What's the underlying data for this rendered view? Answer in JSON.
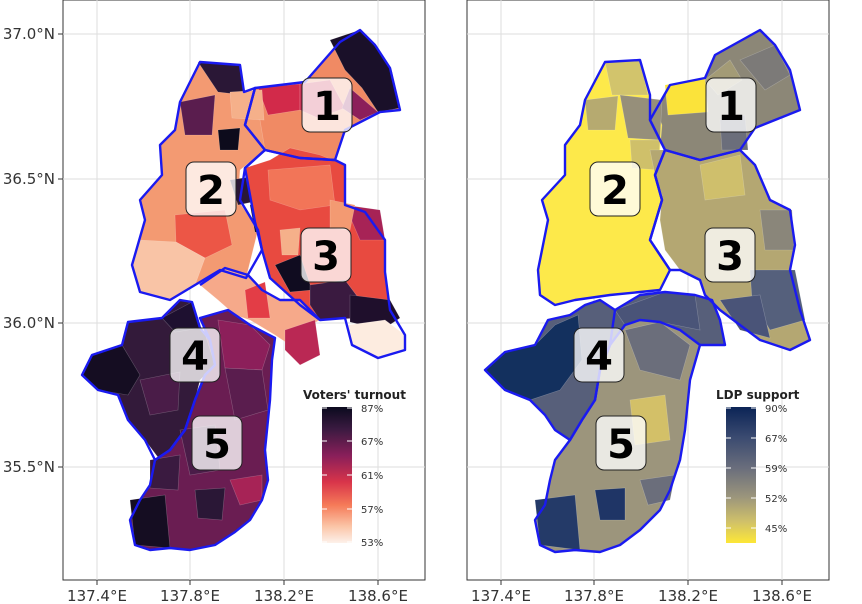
{
  "axes": {
    "lat_ticks": [
      "37.0°N",
      "36.5°N",
      "36.0°N",
      "35.5°N"
    ],
    "lon_ticks": [
      "137.4°E",
      "137.8°E",
      "138.2°E",
      "138.6°E"
    ]
  },
  "panels": [
    {
      "legend": {
        "title": "Voters' turnout",
        "ticks": [
          "87%",
          "67%",
          "61%",
          "57%",
          "53%"
        ],
        "gradient": [
          "#0b0a1e",
          "#3a1a40",
          "#8a1f5a",
          "#d8344a",
          "#f57a58",
          "#fbc6a8",
          "#fdf1ea"
        ]
      },
      "district_labels": [
        "1",
        "2",
        "3",
        "4",
        "5"
      ]
    },
    {
      "legend": {
        "title": "LDP support",
        "ticks": [
          "90%",
          "67%",
          "59%",
          "52%",
          "45%"
        ],
        "gradient": [
          "#0b2456",
          "#3a4a70",
          "#6a6e7c",
          "#9b957c",
          "#cfc06a",
          "#fde737"
        ]
      },
      "district_labels": [
        "1",
        "2",
        "3",
        "4",
        "5"
      ]
    }
  ],
  "colors": {
    "district_border": "#1a1af0",
    "panel_border": "#333333",
    "grid": "#dddddd"
  }
}
